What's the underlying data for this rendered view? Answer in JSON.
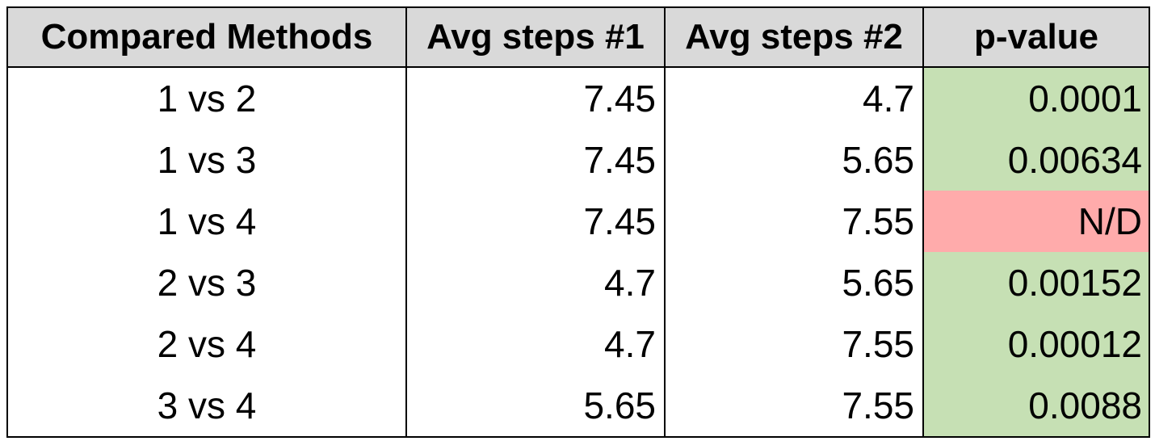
{
  "table": {
    "headers": [
      "Compared Methods",
      "Avg steps #1",
      "Avg steps #2",
      "p-value"
    ],
    "rows": [
      {
        "method": "1 vs 2",
        "avg1": "7.45",
        "avg2": "4.7",
        "pvalue": "0.0001",
        "status": "significant"
      },
      {
        "method": "1 vs 3",
        "avg1": "7.45",
        "avg2": "5.65",
        "pvalue": "0.00634",
        "status": "significant"
      },
      {
        "method": "1 vs 4",
        "avg1": "7.45",
        "avg2": "7.55",
        "pvalue": "N/D",
        "status": "not-determined"
      },
      {
        "method": "2 vs 3",
        "avg1": "4.7",
        "avg2": "5.65",
        "pvalue": "0.00152",
        "status": "significant"
      },
      {
        "method": "2 vs 4",
        "avg1": "4.7",
        "avg2": "7.55",
        "pvalue": "0.00012",
        "status": "significant"
      },
      {
        "method": "3 vs 4",
        "avg1": "5.65",
        "avg2": "7.55",
        "pvalue": "0.0088",
        "status": "significant"
      }
    ]
  },
  "colors": {
    "header_bg": "#d9d9d9",
    "significant_bg": "#c6e0b4",
    "not_determined_bg": "#ffabab"
  }
}
